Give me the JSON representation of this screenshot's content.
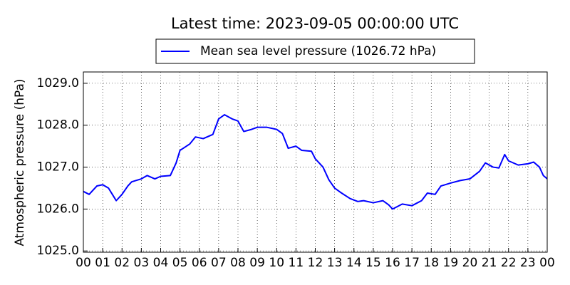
{
  "chart_data": {
    "type": "line",
    "title": "Latest time: 2023-09-05 00:00:00 UTC",
    "ylabel": "Atmospheric pressure (hPa)",
    "legend": "upper center",
    "grid": true,
    "x": [
      0,
      0.3,
      0.7,
      1.0,
      1.3,
      1.5,
      1.7,
      2.0,
      2.3,
      2.5,
      3.0,
      3.3,
      3.7,
      4.0,
      4.5,
      4.8,
      5.0,
      5.5,
      5.8,
      6.2,
      6.7,
      7.0,
      7.3,
      7.7,
      8.0,
      8.3,
      8.7,
      9.0,
      9.5,
      10.0,
      10.3,
      10.6,
      11.0,
      11.3,
      11.8,
      12.0,
      12.4,
      12.7,
      13.0,
      13.3,
      13.8,
      14.2,
      14.5,
      15.0,
      15.5,
      15.8,
      16.0,
      16.5,
      17.0,
      17.5,
      17.8,
      18.2,
      18.5,
      19.0,
      19.5,
      20.0,
      20.5,
      20.8,
      21.2,
      21.5,
      21.8,
      22.0,
      22.5,
      23.0,
      23.3,
      23.6,
      23.8,
      24.0
    ],
    "series": [
      {
        "name": "Mean sea level pressure (1026.72 hPa)",
        "color": "#0000ff",
        "values": [
          1026.42,
          1026.35,
          1026.55,
          1026.58,
          1026.5,
          1026.35,
          1026.2,
          1026.35,
          1026.55,
          1026.65,
          1026.72,
          1026.8,
          1026.72,
          1026.78,
          1026.8,
          1027.1,
          1027.4,
          1027.55,
          1027.72,
          1027.68,
          1027.78,
          1028.15,
          1028.25,
          1028.15,
          1028.1,
          1027.85,
          1027.9,
          1027.95,
          1027.95,
          1027.9,
          1027.8,
          1027.45,
          1027.5,
          1027.4,
          1027.38,
          1027.2,
          1027.0,
          1026.7,
          1026.5,
          1026.4,
          1026.25,
          1026.18,
          1026.2,
          1026.15,
          1026.2,
          1026.1,
          1026.0,
          1026.12,
          1026.08,
          1026.2,
          1026.38,
          1026.35,
          1026.55,
          1026.62,
          1026.68,
          1026.72,
          1026.9,
          1027.1,
          1027.0,
          1026.98,
          1027.3,
          1027.15,
          1027.05,
          1027.08,
          1027.12,
          1027.0,
          1026.8,
          1026.72
        ]
      }
    ],
    "xlim": [
      0,
      24
    ],
    "xticks": [
      {
        "value": 0,
        "label": "00"
      },
      {
        "value": 1,
        "label": "01"
      },
      {
        "value": 2,
        "label": "02"
      },
      {
        "value": 3,
        "label": "03"
      },
      {
        "value": 4,
        "label": "04"
      },
      {
        "value": 5,
        "label": "05"
      },
      {
        "value": 6,
        "label": "06"
      },
      {
        "value": 7,
        "label": "07"
      },
      {
        "value": 8,
        "label": "08"
      },
      {
        "value": 9,
        "label": "09"
      },
      {
        "value": 10,
        "label": "10"
      },
      {
        "value": 11,
        "label": "11"
      },
      {
        "value": 12,
        "label": "12"
      },
      {
        "value": 13,
        "label": "13"
      },
      {
        "value": 14,
        "label": "14"
      },
      {
        "value": 15,
        "label": "15"
      },
      {
        "value": 16,
        "label": "16"
      },
      {
        "value": 17,
        "label": "17"
      },
      {
        "value": 18,
        "label": "18"
      },
      {
        "value": 19,
        "label": "19"
      },
      {
        "value": 20,
        "label": "20"
      },
      {
        "value": 21,
        "label": "21"
      },
      {
        "value": 22,
        "label": "22"
      },
      {
        "value": 23,
        "label": "23"
      },
      {
        "value": 24,
        "label": "00"
      }
    ],
    "ylim": [
      1024.97,
      1029.27
    ],
    "yticks": [
      {
        "value": 1025,
        "label": "1025.0"
      },
      {
        "value": 1026,
        "label": "1026.0"
      },
      {
        "value": 1027,
        "label": "1027.0"
      },
      {
        "value": 1028,
        "label": "1028.0"
      },
      {
        "value": 1029,
        "label": "1029.0"
      }
    ]
  }
}
